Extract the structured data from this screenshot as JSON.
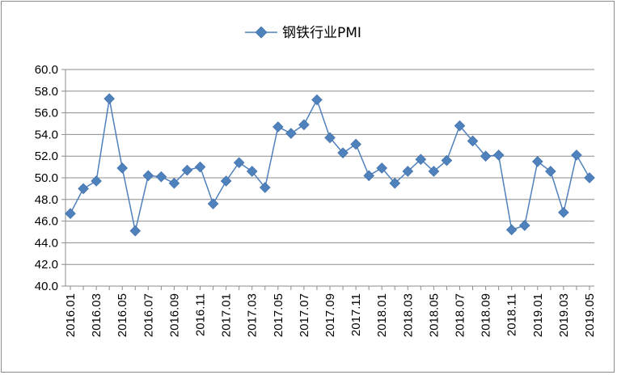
{
  "chart_data": {
    "type": "line",
    "ylim": [
      40,
      60
    ],
    "yticks": [
      "40.0",
      "42.0",
      "44.0",
      "46.0",
      "48.0",
      "50.0",
      "52.0",
      "54.0",
      "56.0",
      "58.0",
      "60.0"
    ],
    "x": [
      "2016.01",
      "2016.02",
      "2016.03",
      "2016.04",
      "2016.05",
      "2016.06",
      "2016.07",
      "2016.08",
      "2016.09",
      "2016.10",
      "2016.11",
      "2016.12",
      "2017.01",
      "2017.02",
      "2017.03",
      "2017.04",
      "2017.05",
      "2017.06",
      "2017.07",
      "2017.08",
      "2017.09",
      "2017.10",
      "2017.11",
      "2017.12",
      "2018.01",
      "2018.02",
      "2018.03",
      "2018.04",
      "2018.05",
      "2018.06",
      "2018.07",
      "2018.08",
      "2018.09",
      "2018.10",
      "2018.11",
      "2018.12",
      "2019.01",
      "2019.02",
      "2019.03",
      "2019.04",
      "2019.05"
    ],
    "xtick_labels": [
      "2016.01",
      "2016.03",
      "2016.05",
      "2016.07",
      "2016.09",
      "2016.11",
      "2017.01",
      "2017.03",
      "2017.05",
      "2017.07",
      "2017.09",
      "2017.11",
      "2018.01",
      "2018.03",
      "2018.05",
      "2018.07",
      "2018.09",
      "2018.11",
      "2019.01",
      "2019.03",
      "2019.05"
    ],
    "series": [
      {
        "name": "钢铁行业PMI",
        "color": "#4f81bd",
        "values": [
          46.7,
          49.0,
          49.7,
          57.3,
          50.9,
          45.1,
          50.2,
          50.1,
          49.5,
          50.7,
          51.0,
          47.6,
          49.7,
          51.4,
          50.6,
          49.1,
          54.7,
          54.1,
          54.9,
          57.2,
          53.7,
          52.3,
          53.1,
          50.2,
          50.9,
          49.5,
          50.6,
          51.7,
          50.6,
          51.6,
          54.8,
          53.4,
          52.0,
          52.1,
          45.2,
          45.6,
          51.5,
          50.6,
          46.8,
          52.1,
          50.0
        ]
      }
    ],
    "grid": true,
    "legend_position": "top-center"
  }
}
